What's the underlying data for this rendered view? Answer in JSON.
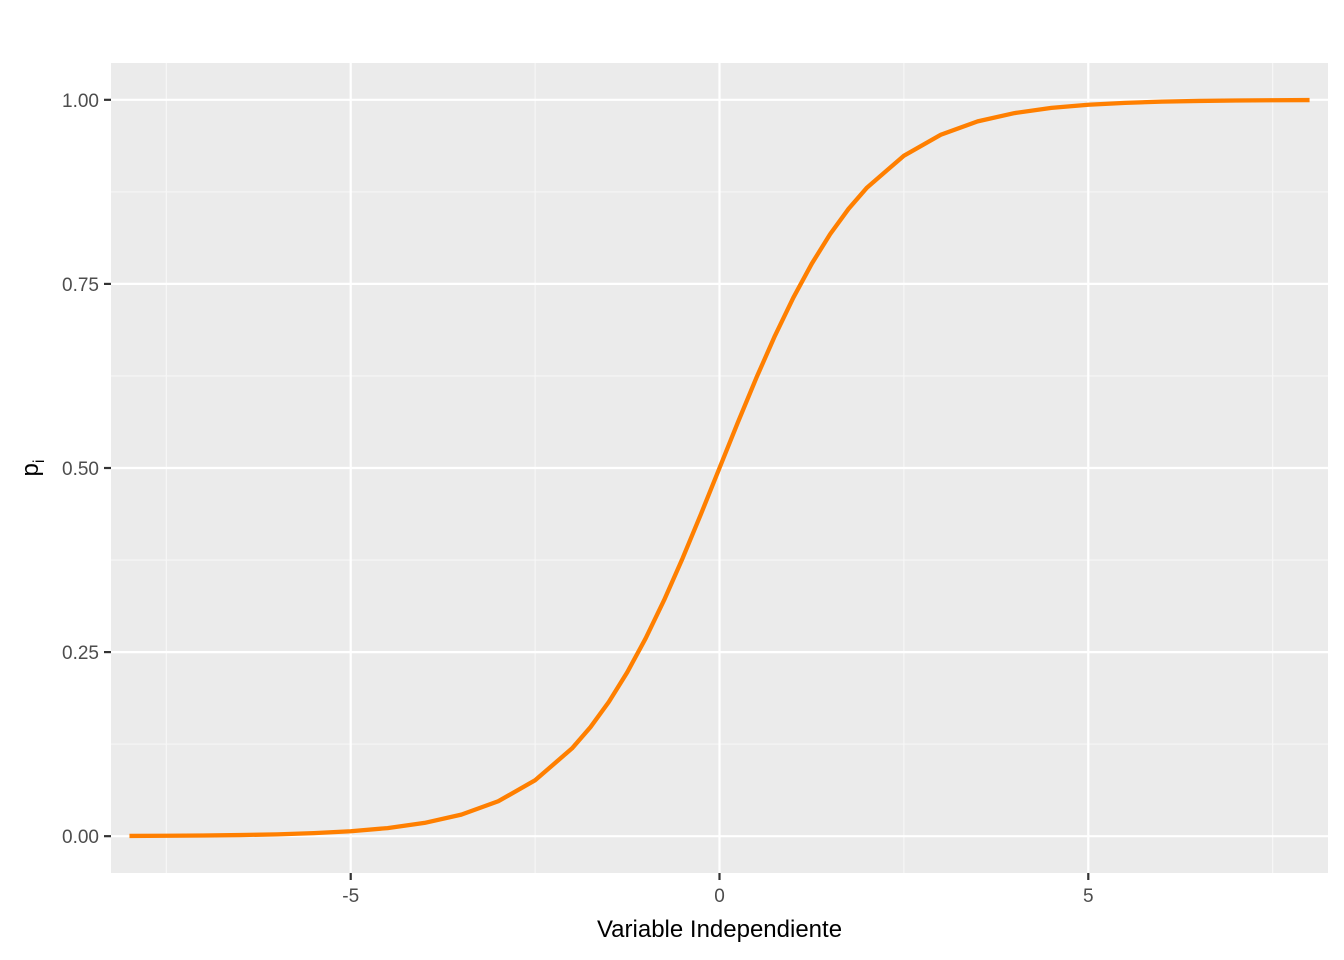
{
  "chart_data": {
    "type": "line",
    "title": "",
    "xlabel": "Variable Independiente",
    "ylabel": "p",
    "ylabel_subscript": "i",
    "xlim": [
      -8.25,
      8.25
    ],
    "ylim": [
      -0.05,
      1.05
    ],
    "x_ticks": [
      -5,
      0,
      5
    ],
    "x_tick_labels": [
      "-5",
      "0",
      "5"
    ],
    "x_minor_ticks": [
      -7.5,
      -2.5,
      2.5,
      7.5
    ],
    "y_ticks": [
      0,
      0.25,
      0.5,
      0.75,
      1
    ],
    "y_tick_labels": [
      "0.00",
      "0.25",
      "0.50",
      "0.75",
      "1.00"
    ],
    "y_minor_ticks": [
      0.125,
      0.375,
      0.625,
      0.875
    ],
    "grid": true,
    "legend": "none",
    "series": [
      {
        "color": "#ff7f00",
        "x": [
          -8,
          -7.5,
          -7,
          -6.5,
          -6,
          -5.5,
          -5,
          -4.5,
          -4,
          -3.5,
          -3,
          -2.5,
          -2,
          -1.75,
          -1.5,
          -1.25,
          -1,
          -0.75,
          -0.5,
          -0.25,
          0,
          0.25,
          0.5,
          0.75,
          1,
          1.25,
          1.5,
          1.75,
          2,
          2.5,
          3,
          3.5,
          4,
          4.5,
          5,
          5.5,
          6,
          6.5,
          7,
          7.5,
          8
        ],
        "y": [
          0.0003,
          0.0006,
          0.0009,
          0.0015,
          0.0025,
          0.0041,
          0.0067,
          0.011,
          0.018,
          0.0293,
          0.0474,
          0.0759,
          0.1192,
          0.148,
          0.1824,
          0.2227,
          0.2689,
          0.3208,
          0.3775,
          0.4378,
          0.5,
          0.5622,
          0.6225,
          0.6792,
          0.7311,
          0.7773,
          0.8176,
          0.852,
          0.8808,
          0.9241,
          0.9526,
          0.9707,
          0.982,
          0.989,
          0.9933,
          0.9959,
          0.9975,
          0.9985,
          0.9991,
          0.9994,
          0.9997
        ]
      }
    ]
  },
  "colors": {
    "panel_background": "#ebebeb",
    "grid_major": "#ffffff",
    "grid_minor": "#f7f7f7",
    "line": "#ff7f00"
  }
}
